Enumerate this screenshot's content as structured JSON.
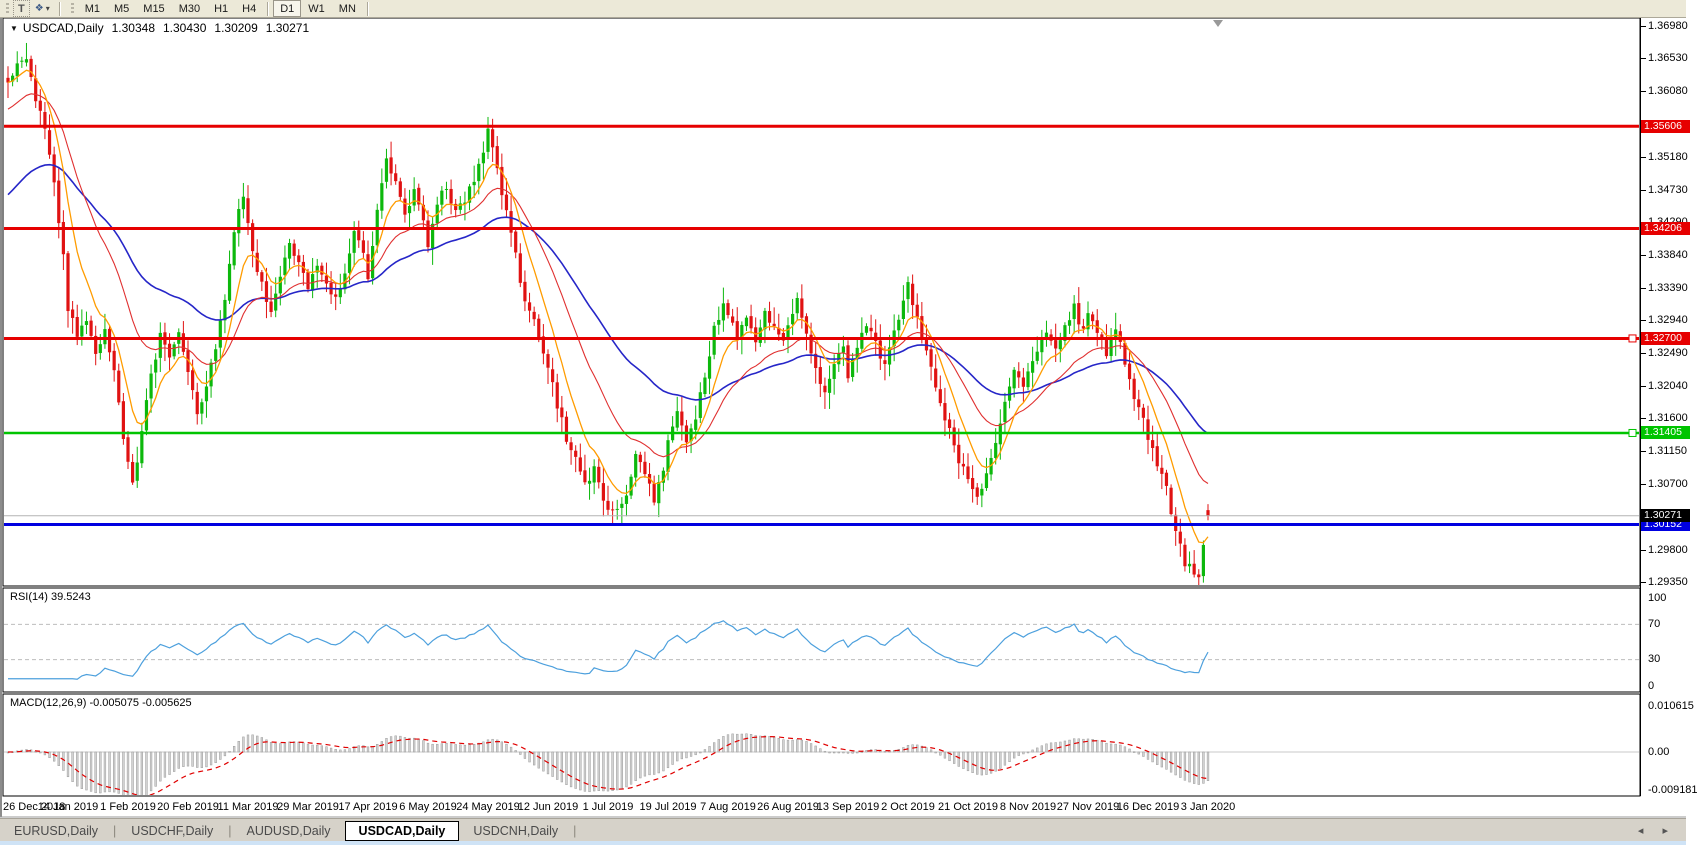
{
  "toolbar": {
    "text_tool_label": "T",
    "styler_icon_glyph": "❖",
    "timeframes": [
      "M1",
      "M5",
      "M15",
      "M30",
      "H1",
      "H4",
      "D1",
      "W1",
      "MN"
    ],
    "active_timeframe": "D1",
    "separator_after_index": 5
  },
  "chart": {
    "title": "USDCAD,Daily",
    "ohlc": {
      "open": "1.30348",
      "high": "1.30430",
      "low": "1.30209",
      "close": "1.30271"
    },
    "price_axis_ticks": [
      "1.36980",
      "1.36530",
      "1.36080",
      "1.35180",
      "1.34730",
      "1.34290",
      "1.33840",
      "1.33390",
      "1.32940",
      "1.32490",
      "1.32040",
      "1.31600",
      "1.31150",
      "1.30700",
      "1.29800",
      "1.29350"
    ],
    "levels": [
      {
        "price": 1.35606,
        "label": "1.35606",
        "color": "#e60000",
        "width": 3,
        "handle": false
      },
      {
        "price": 1.34206,
        "label": "1.34206",
        "color": "#e60000",
        "width": 3,
        "handle": false
      },
      {
        "price": 1.327,
        "label": "1.32700",
        "color": "#e60000",
        "width": 3,
        "handle": true
      },
      {
        "price": 1.31405,
        "label": "1.31405",
        "color": "#00c400",
        "width": 2.5,
        "handle": true
      },
      {
        "price": 1.30152,
        "label": "1.30152",
        "color": "#0000e0",
        "width": 3,
        "handle": false
      }
    ],
    "current_price": {
      "value": 1.30271,
      "label": "1.30271",
      "tag_bg": "#000000"
    },
    "dates": [
      "26 Dec 2018",
      "14 Jan 2019",
      "1 Feb 2019",
      "20 Feb 2019",
      "11 Mar 2019",
      "29 Mar 2019",
      "17 Apr 2019",
      "6 May 2019",
      "24 May 2019",
      "12 Jun 2019",
      "1 Jul 2019",
      "19 Jul 2019",
      "7 Aug 2019",
      "26 Aug 2019",
      "13 Sep 2019",
      "2 Oct 2019",
      "21 Oct 2019",
      "8 Nov 2019",
      "27 Nov 2019",
      "16 Dec 2019",
      "3 Jan 2020"
    ]
  },
  "rsi": {
    "label": "RSI(14) 39.5243",
    "ticks": [
      {
        "value": 100,
        "label": "100"
      },
      {
        "value": 70,
        "label": "70"
      },
      {
        "value": 30,
        "label": "30"
      },
      {
        "value": 0,
        "label": "0"
      }
    ],
    "dashed_levels": [
      70,
      30
    ],
    "current": 39.5243
  },
  "macd": {
    "label": "MACD(12,26,9) -0.005075 -0.005625",
    "ticks": [
      {
        "value": 0.010615,
        "label": "0.010615"
      },
      {
        "value": 0,
        "label": "0.00"
      },
      {
        "value": -0.009181,
        "label": "-0.009181"
      }
    ],
    "current_macd": -0.005075,
    "current_signal": -0.005625
  },
  "tabs": {
    "items": [
      {
        "label": "EURUSD,Daily"
      },
      {
        "label": "USDCHF,Daily"
      },
      {
        "label": "AUDUSD,Daily"
      },
      {
        "label": "USDCAD,Daily"
      },
      {
        "label": "USDCNH,Daily"
      }
    ],
    "active_index": 3,
    "scroll_left_glyph": "◂",
    "scroll_right_glyph": "▸"
  },
  "colors": {
    "candle_up": "#0cb80c",
    "candle_down": "#e01212",
    "ma_fast": "#ff9c00",
    "ma_mid": "#e03030",
    "ma_slow": "#2626c8",
    "rsi_line": "#4da0dd",
    "dashed_level": "#bdbdbd",
    "macd_bar_fill": "#d2d2d2",
    "macd_bar_stroke": "#9b9b9b",
    "macd_signal": "#e00000",
    "current_price_line": "#b4b4b4",
    "panel_border": "#000000",
    "toolbar_bg": "#ece9d8",
    "tabbar_bg": "#d6d2c9",
    "status_bg": "#cfe3f6"
  },
  "chart_data": {
    "type": "candlestick",
    "symbol": "USDCAD",
    "timeframe": "Daily",
    "title": "USDCAD,Daily 1.30348 1.30430 1.30209 1.30271",
    "last_bar": {
      "open": 1.30348,
      "high": 1.3043,
      "low": 1.30209,
      "close": 1.30271
    },
    "bar_count": 261,
    "bars_per_date_label": 13,
    "x_dates": [
      "26 Dec 2018",
      "14 Jan 2019",
      "1 Feb 2019",
      "20 Feb 2019",
      "11 Mar 2019",
      "29 Mar 2019",
      "17 Apr 2019",
      "6 May 2019",
      "24 May 2019",
      "12 Jun 2019",
      "1 Jul 2019",
      "19 Jul 2019",
      "7 Aug 2019",
      "26 Aug 2019",
      "13 Sep 2019",
      "2 Oct 2019",
      "21 Oct 2019",
      "8 Nov 2019",
      "27 Nov 2019",
      "16 Dec 2019",
      "3 Jan 2020"
    ],
    "y_range": [
      1.293,
      1.3702
    ],
    "horizontal_levels": [
      1.35606,
      1.34206,
      1.327,
      1.31405,
      1.30152
    ],
    "moving_averages": [
      {
        "name": "fast",
        "period": 8,
        "color": "#ff9c00"
      },
      {
        "name": "mid",
        "period": 22,
        "color": "#e03030"
      },
      {
        "name": "slow",
        "period": 50,
        "color": "#2626c8"
      }
    ],
    "close_anchors": [
      [
        0,
        1.3615
      ],
      [
        2,
        1.3641
      ],
      [
        4,
        1.3656
      ],
      [
        6,
        1.3601
      ],
      [
        8,
        1.3562
      ],
      [
        10,
        1.348
      ],
      [
        12,
        1.3382
      ],
      [
        13,
        1.3312
      ],
      [
        15,
        1.3272
      ],
      [
        17,
        1.3296
      ],
      [
        19,
        1.3252
      ],
      [
        21,
        1.3281
      ],
      [
        23,
        1.3222
      ],
      [
        25,
        1.3131
      ],
      [
        27,
        1.3071
      ],
      [
        29,
        1.3141
      ],
      [
        31,
        1.3221
      ],
      [
        33,
        1.3271
      ],
      [
        35,
        1.3246
      ],
      [
        37,
        1.3281
      ],
      [
        39,
        1.3231
      ],
      [
        41,
        1.3172
      ],
      [
        43,
        1.3201
      ],
      [
        45,
        1.3261
      ],
      [
        47,
        1.3321
      ],
      [
        49,
        1.3421
      ],
      [
        51,
        1.3461
      ],
      [
        53,
        1.3391
      ],
      [
        55,
        1.3341
      ],
      [
        57,
        1.3311
      ],
      [
        59,
        1.3356
      ],
      [
        61,
        1.3401
      ],
      [
        63,
        1.3371
      ],
      [
        65,
        1.3341
      ],
      [
        67,
        1.3371
      ],
      [
        69,
        1.3341
      ],
      [
        71,
        1.3321
      ],
      [
        73,
        1.3361
      ],
      [
        75,
        1.3411
      ],
      [
        77,
        1.3391
      ],
      [
        78,
        1.3352
      ],
      [
        80,
        1.3451
      ],
      [
        82,
        1.3511
      ],
      [
        84,
        1.3481
      ],
      [
        86,
        1.3441
      ],
      [
        88,
        1.3471
      ],
      [
        90,
        1.3431
      ],
      [
        91,
        1.3401
      ],
      [
        93,
        1.3451
      ],
      [
        95,
        1.3481
      ],
      [
        97,
        1.3441
      ],
      [
        99,
        1.3461
      ],
      [
        101,
        1.3491
      ],
      [
        103,
        1.3531
      ],
      [
        104,
        1.3561
      ],
      [
        106,
        1.3501
      ],
      [
        108,
        1.3441
      ],
      [
        110,
        1.3381
      ],
      [
        112,
        1.3321
      ],
      [
        114,
        1.3291
      ],
      [
        116,
        1.3251
      ],
      [
        117,
        1.3231
      ],
      [
        119,
        1.3181
      ],
      [
        121,
        1.3131
      ],
      [
        123,
        1.3111
      ],
      [
        125,
        1.3071
      ],
      [
        127,
        1.3091
      ],
      [
        129,
        1.3051
      ],
      [
        130,
        1.3041
      ],
      [
        132,
        1.3031
      ],
      [
        134,
        1.3061
      ],
      [
        136,
        1.3111
      ],
      [
        138,
        1.3081
      ],
      [
        140,
        1.3051
      ],
      [
        142,
        1.3091
      ],
      [
        143,
        1.3131
      ],
      [
        145,
        1.3171
      ],
      [
        147,
        1.3131
      ],
      [
        149,
        1.3161
      ],
      [
        151,
        1.3221
      ],
      [
        153,
        1.3281
      ],
      [
        155,
        1.3321
      ],
      [
        156,
        1.3301
      ],
      [
        158,
        1.3271
      ],
      [
        160,
        1.3301
      ],
      [
        162,
        1.3271
      ],
      [
        164,
        1.3311
      ],
      [
        166,
        1.3281
      ],
      [
        168,
        1.3261
      ],
      [
        169,
        1.3291
      ],
      [
        171,
        1.3321
      ],
      [
        173,
        1.3281
      ],
      [
        175,
        1.3231
      ],
      [
        177,
        1.3191
      ],
      [
        179,
        1.3231
      ],
      [
        181,
        1.3261
      ],
      [
        182,
        1.3221
      ],
      [
        184,
        1.3251
      ],
      [
        186,
        1.3291
      ],
      [
        188,
        1.3261
      ],
      [
        190,
        1.3231
      ],
      [
        192,
        1.3281
      ],
      [
        194,
        1.3321
      ],
      [
        195,
        1.3341
      ],
      [
        197,
        1.3301
      ],
      [
        199,
        1.3251
      ],
      [
        201,
        1.3201
      ],
      [
        203,
        1.3161
      ],
      [
        205,
        1.3121
      ],
      [
        207,
        1.3091
      ],
      [
        208,
        1.3071
      ],
      [
        210,
        1.3051
      ],
      [
        212,
        1.3081
      ],
      [
        214,
        1.3131
      ],
      [
        216,
        1.3181
      ],
      [
        218,
        1.3221
      ],
      [
        220,
        1.3201
      ],
      [
        221,
        1.3231
      ],
      [
        223,
        1.3251
      ],
      [
        225,
        1.3281
      ],
      [
        227,
        1.3251
      ],
      [
        229,
        1.3291
      ],
      [
        231,
        1.3311
      ],
      [
        233,
        1.3281
      ],
      [
        234,
        1.3301
      ],
      [
        236,
        1.3281
      ],
      [
        238,
        1.3251
      ],
      [
        240,
        1.3281
      ],
      [
        242,
        1.3241
      ],
      [
        244,
        1.3191
      ],
      [
        246,
        1.3161
      ],
      [
        247,
        1.3131
      ],
      [
        249,
        1.3101
      ],
      [
        251,
        1.3061
      ],
      [
        253,
        1.3011
      ],
      [
        255,
        1.2961
      ],
      [
        257,
        1.2951
      ],
      [
        258,
        1.2941
      ],
      [
        259,
        1.2991
      ],
      [
        260,
        1.30271
      ]
    ],
    "indicators": {
      "rsi": {
        "period": 14,
        "current": 39.5243,
        "levels": [
          30,
          70
        ],
        "range": [
          0,
          100
        ]
      },
      "macd": {
        "fast": 12,
        "slow": 26,
        "signal": 9,
        "current_macd": -0.005075,
        "current_signal": -0.005625,
        "axis": [
          -0.009181,
          0.0,
          0.010615
        ]
      }
    }
  }
}
